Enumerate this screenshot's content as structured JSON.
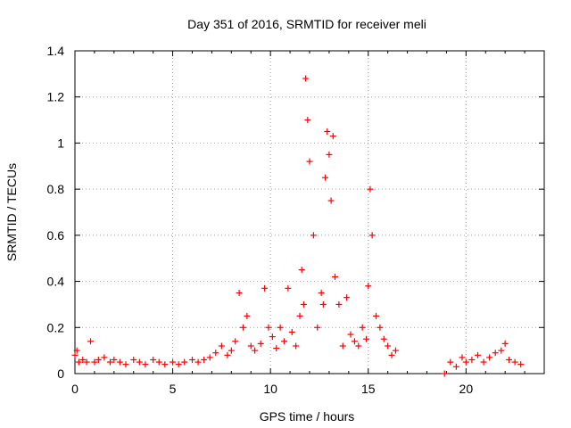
{
  "chart_data": {
    "type": "scatter",
    "title": "Day 351 of 2016, SRMTID for receiver meli",
    "xlabel": "GPS time / hours",
    "ylabel": "SRMTID / TECUs",
    "xlim": [
      0,
      24
    ],
    "ylim": [
      0,
      1.4
    ],
    "xticks": [
      0,
      5,
      10,
      15,
      20
    ],
    "yticks": [
      0,
      0.2,
      0.4,
      0.6,
      0.8,
      1,
      1.2,
      1.4
    ],
    "xtick_labels": [
      "0",
      "5",
      "10",
      "15",
      "20"
    ],
    "ytick_labels": [
      "0",
      "0.2",
      "0.4",
      "0.6",
      "0.8",
      "1",
      "1.2",
      "1.4"
    ],
    "grid": true,
    "marker": "+",
    "marker_color": "#ff0000",
    "series": [
      {
        "name": "SRMTID",
        "x": [
          0.0,
          0.1,
          0.2,
          0.4,
          0.6,
          0.8,
          1.0,
          1.2,
          1.5,
          1.8,
          2.0,
          2.3,
          2.6,
          3.0,
          3.3,
          3.6,
          4.0,
          4.3,
          4.6,
          5.0,
          5.3,
          5.6,
          6.0,
          6.3,
          6.6,
          6.9,
          7.2,
          7.5,
          7.8,
          8.0,
          8.2,
          8.4,
          8.6,
          8.8,
          9.0,
          9.2,
          9.5,
          9.7,
          9.9,
          10.1,
          10.3,
          10.5,
          10.7,
          10.9,
          11.1,
          11.3,
          11.5,
          11.6,
          11.7,
          11.8,
          11.9,
          12.0,
          12.2,
          12.4,
          12.6,
          12.7,
          12.8,
          12.9,
          13.0,
          13.1,
          13.2,
          13.3,
          13.5,
          13.7,
          13.9,
          14.1,
          14.3,
          14.5,
          14.7,
          14.9,
          15.0,
          15.1,
          15.2,
          15.4,
          15.6,
          15.8,
          16.0,
          16.2,
          16.4,
          18.9,
          19.2,
          19.5,
          19.8,
          20.0,
          20.3,
          20.6,
          20.9,
          21.2,
          21.5,
          21.8,
          22.0,
          22.2,
          22.5,
          22.8
        ],
        "y": [
          0.08,
          0.1,
          0.05,
          0.06,
          0.05,
          0.14,
          0.05,
          0.06,
          0.07,
          0.05,
          0.06,
          0.05,
          0.04,
          0.06,
          0.05,
          0.04,
          0.06,
          0.05,
          0.04,
          0.05,
          0.04,
          0.05,
          0.06,
          0.05,
          0.06,
          0.07,
          0.09,
          0.12,
          0.08,
          0.1,
          0.14,
          0.35,
          0.2,
          0.25,
          0.12,
          0.1,
          0.13,
          0.37,
          0.2,
          0.16,
          0.11,
          0.2,
          0.14,
          0.37,
          0.18,
          0.12,
          0.25,
          0.45,
          0.3,
          1.28,
          1.1,
          0.92,
          0.6,
          0.2,
          0.35,
          0.3,
          0.85,
          1.05,
          0.95,
          0.75,
          1.03,
          0.42,
          0.3,
          0.12,
          0.33,
          0.17,
          0.14,
          0.12,
          0.2,
          0.15,
          0.38,
          0.8,
          0.6,
          0.25,
          0.2,
          0.15,
          0.12,
          0.08,
          0.1,
          0.0,
          0.05,
          0.03,
          0.07,
          0.05,
          0.06,
          0.08,
          0.05,
          0.07,
          0.09,
          0.1,
          0.13,
          0.06,
          0.05,
          0.04
        ]
      }
    ]
  }
}
